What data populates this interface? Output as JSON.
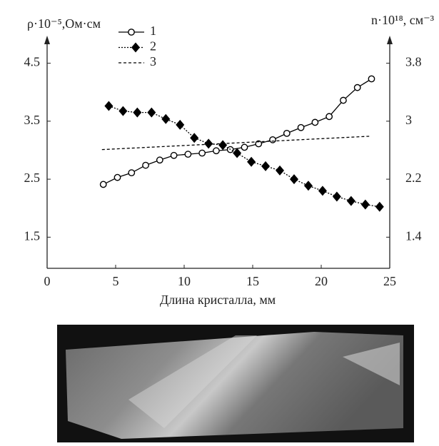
{
  "chart_data": {
    "type": "line",
    "y_label": "ρ·10⁻⁵,Ом·см",
    "y2_label": "n·10¹⁸, см⁻³",
    "x_label": "Длина кристалла, мм",
    "xlim": [
      0,
      25
    ],
    "xticks": [
      0,
      5,
      10,
      15,
      20,
      25
    ],
    "ylim": [
      1.0,
      4.95
    ],
    "yticks": [
      1.5,
      2.5,
      3.5,
      4.5
    ],
    "y2lim": [
      1.0,
      4.16
    ],
    "y2ticks": [
      1.4,
      2.2,
      3.0,
      3.8
    ],
    "legend": "top-left",
    "series": [
      {
        "name": "1",
        "color": "#000000",
        "marker": "circle",
        "line_style": "solid",
        "x": [
          4.1,
          5.13,
          6.16,
          7.19,
          8.22,
          9.25,
          10.28,
          11.31,
          12.34,
          13.37,
          14.4,
          15.43,
          16.46,
          17.49,
          18.52,
          19.55,
          20.58,
          21.61,
          22.64,
          23.67
        ],
        "values": [
          2.41,
          2.53,
          2.61,
          2.74,
          2.83,
          2.91,
          2.93,
          2.95,
          2.99,
          3.01,
          3.05,
          3.11,
          3.18,
          3.29,
          3.39,
          3.48,
          3.58,
          3.86,
          4.08,
          4.23
        ]
      },
      {
        "name": "2",
        "color": "#000000",
        "marker": "diamond",
        "line_style": "dotted",
        "axis": "y2",
        "x": [
          4.5,
          5.54,
          6.58,
          7.62,
          8.66,
          9.7,
          10.74,
          11.78,
          12.82,
          13.86,
          14.9,
          15.94,
          16.98,
          18.02,
          19.06,
          20.1,
          21.14,
          22.18,
          23.22,
          24.26
        ],
        "values": [
          3.21,
          3.14,
          3.12,
          3.12,
          3.03,
          2.95,
          2.77,
          2.69,
          2.67,
          2.56,
          2.44,
          2.38,
          2.32,
          2.2,
          2.11,
          2.04,
          1.96,
          1.9,
          1.85,
          1.82
        ]
      },
      {
        "name": "3",
        "color": "#000000",
        "marker": "none",
        "line_style": "dashed",
        "x": [
          4.0,
          23.5
        ],
        "values": [
          3.01,
          3.24
        ]
      }
    ]
  }
}
